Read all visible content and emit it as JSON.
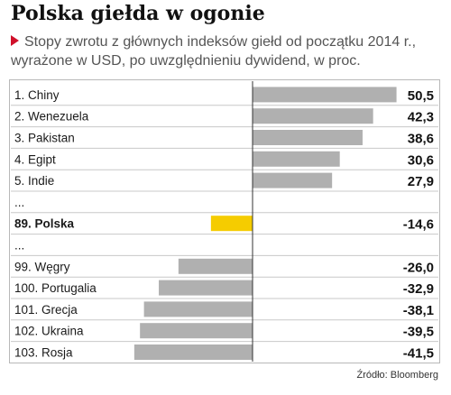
{
  "title": "Polska giełda w ogonie",
  "subtitle": "Stopy zwrotu z głównych indeksów giełd od początku 2014 r., wyrażone w USD, po uwzględnieniu dywidend, w proc.",
  "source": "Źródło: Bloomberg",
  "colors": {
    "bar": "#b0b0b0",
    "highlight": "#f5cc00",
    "accent": "#d0112b"
  },
  "chart_data": {
    "type": "bar",
    "orientation": "horizontal",
    "title": "Polska giełda w ogonie",
    "rows": [
      {
        "label": "1. Chiny",
        "value": 50.5,
        "display": "50,5"
      },
      {
        "label": "2. Wenezuela",
        "value": 42.3,
        "display": "42,3"
      },
      {
        "label": "3. Pakistan",
        "value": 38.6,
        "display": "38,6"
      },
      {
        "label": "4. Egipt",
        "value": 30.6,
        "display": "30,6"
      },
      {
        "label": "5. Indie",
        "value": 27.9,
        "display": "27,9"
      },
      {
        "label": "...",
        "value": null,
        "display": ""
      },
      {
        "label": "89. Polska",
        "value": -14.6,
        "display": "-14,6",
        "highlight": true
      },
      {
        "label": "...",
        "value": null,
        "display": ""
      },
      {
        "label": "99. Węgry",
        "value": -26.0,
        "display": "-26,0"
      },
      {
        "label": "100. Portugalia",
        "value": -32.9,
        "display": "-32,9"
      },
      {
        "label": "101. Grecja",
        "value": -38.1,
        "display": "-38,1"
      },
      {
        "label": "102. Ukraina",
        "value": -39.5,
        "display": "-39,5"
      },
      {
        "label": "103. Rosja",
        "value": -41.5,
        "display": "-41,5"
      }
    ],
    "xlim": [
      -50,
      60
    ],
    "grid": false,
    "legend": "none"
  }
}
